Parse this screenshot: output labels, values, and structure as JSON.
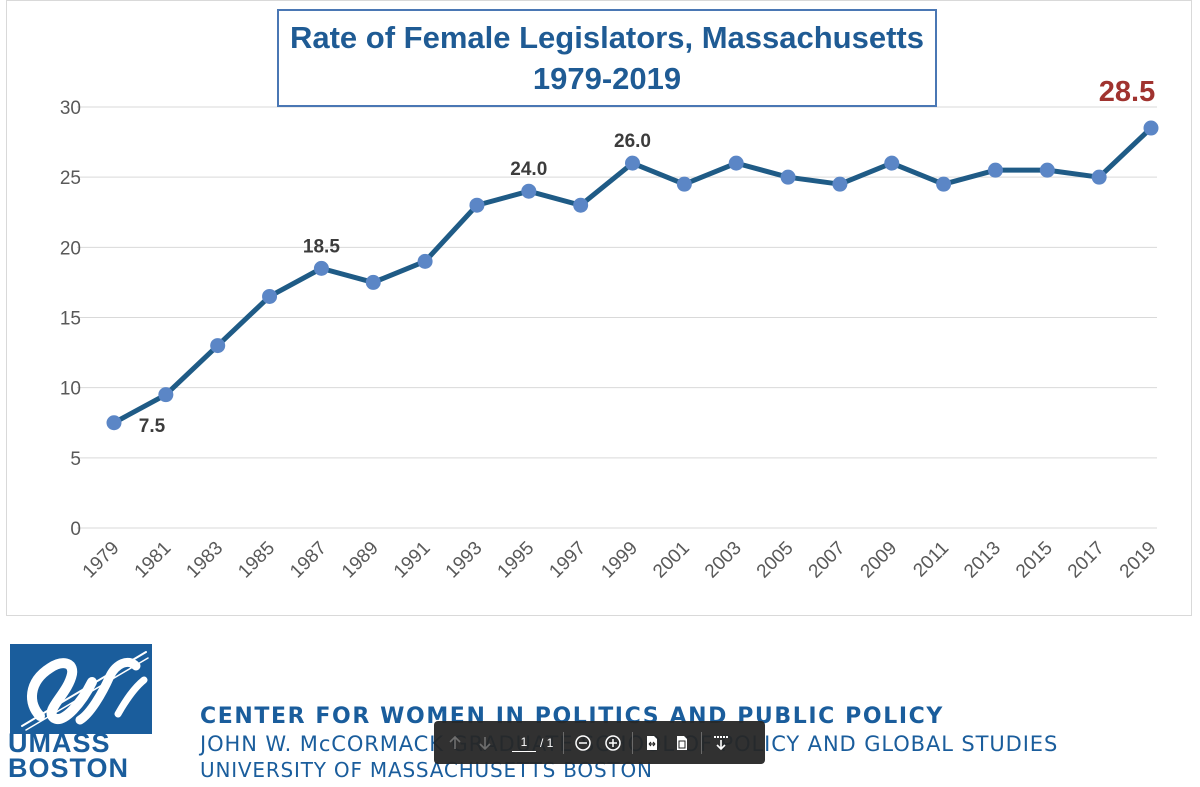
{
  "chart_data": {
    "type": "line",
    "title": "Rate of Female Legislators, Massachusetts",
    "subtitle": "1979-2019",
    "xlabel": "",
    "ylabel": "",
    "ylim": [
      0,
      30
    ],
    "y_ticks": [
      "0",
      "5",
      "10",
      "15",
      "20",
      "25",
      "30"
    ],
    "grid": true,
    "categories": [
      "1979",
      "1981",
      "1983",
      "1985",
      "1987",
      "1989",
      "1991",
      "1993",
      "1995",
      "1997",
      "1999",
      "2001",
      "2003",
      "2005",
      "2007",
      "2009",
      "2011",
      "2013",
      "2015",
      "2017",
      "2019"
    ],
    "series": [
      {
        "values": [
          7.5,
          9.5,
          13,
          16.5,
          18.5,
          17.5,
          19,
          23,
          24,
          23,
          26,
          24.5,
          26,
          25,
          24.5,
          26,
          24.5,
          25.5,
          25.5,
          25,
          28.5
        ]
      }
    ],
    "annotations": [
      {
        "category": "1979",
        "text": "7.5"
      },
      {
        "category": "1987",
        "text": "18.5"
      },
      {
        "category": "1995",
        "text": "24.0"
      },
      {
        "category": "1999",
        "text": "26.0"
      },
      {
        "category": "2019",
        "text": "28.5"
      }
    ],
    "colors": {
      "line": "#1f5b86",
      "marker": "#5b86c6",
      "label": "#3c3c3c",
      "highlight": "#a0332f",
      "grid": "#d9d9d9",
      "axis_text": "#595959"
    }
  },
  "footer": {
    "logo_text_1": "UMASS",
    "logo_text_2": "BOSTON",
    "org_line_1": "CENTER FOR WOMEN IN POLITICS AND PUBLIC POLICY",
    "org_line_2": "JOHN W. McCORMACK GRADUATE SCHOOL OF POLICY AND GLOBAL STUDIES",
    "org_line_3": "UNIVERSITY OF MASSACHUSETTS BOSTON",
    "brand_color": "#1a5d9c"
  },
  "toolbar": {
    "prev_icon": "arrow-up-icon",
    "next_icon": "arrow-down-icon",
    "page_current": "1",
    "page_total": "/ 1",
    "zoom_out_icon": "zoom-out-icon",
    "zoom_in_icon": "zoom-in-icon",
    "fit_width_icon": "fit-width-icon",
    "fit_page_icon": "fit-page-icon",
    "download_icon": "download-icon"
  }
}
